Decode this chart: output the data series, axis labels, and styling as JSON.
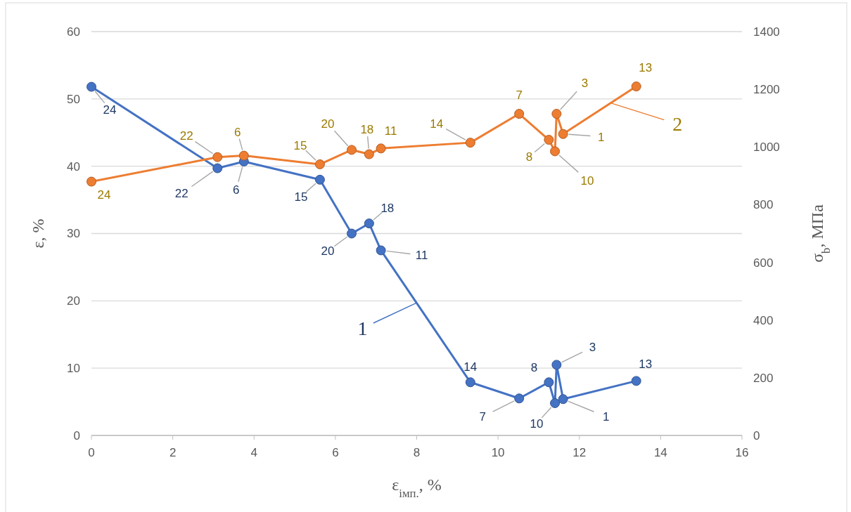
{
  "chart_data": {
    "type": "line",
    "xlabel": "ε$_{імп.}$, %",
    "ylabel": "ε, %",
    "y2label": "σ$_{b}$, МПа",
    "xlim": [
      0,
      16
    ],
    "xticks": [
      0,
      2,
      4,
      6,
      8,
      10,
      12,
      14,
      16
    ],
    "ylim": [
      0,
      60
    ],
    "yticks": [
      0,
      10,
      20,
      30,
      40,
      50,
      60
    ],
    "y2lim": [
      0,
      1400
    ],
    "y2ticks": [
      0,
      200,
      400,
      600,
      800,
      1000,
      1200,
      1400
    ],
    "annotations": [
      {
        "text": "24",
        "x": 0,
        "y": 51.8
      },
      {
        "text": "22",
        "x": 3.1,
        "y": 39.7
      },
      {
        "text": "6",
        "x": 3.75,
        "y": 40.7
      },
      {
        "text": "15",
        "x": 5.62,
        "y": 38
      },
      {
        "text": "20",
        "x": 6.4,
        "y": 30
      },
      {
        "text": "18",
        "x": 6.83,
        "y": 31.5
      },
      {
        "text": "11",
        "x": 7.12,
        "y": 27.5
      },
      {
        "text": "14",
        "x": 9.32,
        "y": 7.9
      },
      {
        "text": "7",
        "x": 10.52,
        "y": 5.5
      },
      {
        "text": "8",
        "x": 11.25,
        "y": 7.9
      },
      {
        "text": "10",
        "x": 11.4,
        "y": 4.8
      },
      {
        "text": "3",
        "x": 11.44,
        "y": 10.5
      },
      {
        "text": "1",
        "x": 11.6,
        "y": 5.4
      },
      {
        "text": "13",
        "x": 13.4,
        "y": 8.1
      },
      {
        "text": "24",
        "x": 0,
        "y": 37.7
      },
      {
        "text": "22",
        "x": 3.1,
        "y": 41.4
      },
      {
        "text": "6",
        "x": 3.75,
        "y": 41.6
      },
      {
        "text": "15",
        "x": 5.62,
        "y": 40.3
      },
      {
        "text": "20",
        "x": 6.4,
        "y": 42.4
      },
      {
        "text": "18",
        "x": 6.83,
        "y": 41.8
      },
      {
        "text": "11",
        "x": 7.12,
        "y": 42.6
      },
      {
        "text": "14",
        "x": 9.32,
        "y": 43.5
      },
      {
        "text": "7",
        "x": 10.52,
        "y": 47.8
      },
      {
        "text": "8",
        "x": 11.25,
        "y": 43.9
      },
      {
        "text": "10",
        "x": 11.4,
        "y": 42.2
      },
      {
        "text": "3",
        "x": 11.44,
        "y": 47.8
      },
      {
        "text": "1",
        "x": 11.6,
        "y": 44.8
      },
      {
        "text": "13",
        "x": 13.4,
        "y": 51.9
      },
      {
        "text": "1",
        "x": 8,
        "y": 19.7
      },
      {
        "text": "2",
        "x": 12.77,
        "y": 49.4
      }
    ],
    "grid": "y",
    "marker": "circle",
    "line_style": "solid",
    "legend": false,
    "series": [
      {
        "color": "#4472c4",
        "x": [
          0,
          3.1,
          3.75,
          5.62,
          6.4,
          6.83,
          7.12,
          9.32,
          10.52,
          11.25,
          11.4,
          11.44,
          11.6,
          13.4
        ],
        "values": [
          51.8,
          39.7,
          40.7,
          38,
          30,
          31.5,
          27.5,
          7.9,
          5.5,
          7.9,
          4.8,
          10.5,
          5.4,
          8.1
        ]
      },
      {
        "color": "#ed7d31",
        "axis": "y2",
        "x": [
          0,
          3.1,
          3.75,
          5.62,
          6.4,
          6.83,
          7.12,
          9.32,
          10.52,
          11.25,
          11.4,
          11.44,
          11.6,
          13.4
        ],
        "values": [
          880,
          965,
          970,
          940,
          990,
          975,
          995,
          1015,
          1115,
          1025,
          985,
          1115,
          1045,
          1210
        ]
      }
    ]
  }
}
